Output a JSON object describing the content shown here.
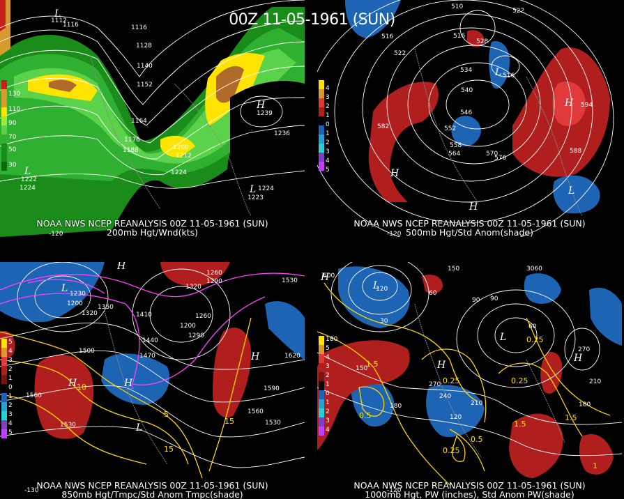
{
  "header": {
    "title": "00Z 11-05-1961 (SUN)"
  },
  "colors": {
    "background": "#000000",
    "wind_shades": [
      "#1a8c1a",
      "#30b030",
      "#5ad24a",
      "#a6e63c",
      "#ffe400",
      "#d89a2e",
      "#b06a2a",
      "#c81e1e"
    ],
    "anom_pos": "#b01e1e",
    "anom_pos_strong": "#e03a3a",
    "anom_neg": "#1e64b4",
    "anom_neg_strong": "#28a0d2",
    "temp_contour": "#ffd700",
    "cold_contour": "#ff40ff",
    "height_contour": "#ffffff"
  },
  "panels": [
    {
      "id": "p1",
      "caption1": "NOAA NWS NCEP REANALYSIS 00Z 11-05-1961 (SUN)",
      "caption2": "200mb Hgt/Wnd(kts)",
      "legend": [
        "130",
        "110",
        "90",
        "70",
        "50",
        "30"
      ],
      "height_labels": [
        "1116",
        "1116",
        "1128",
        "1140",
        "1152",
        "1164",
        "1176",
        "1188",
        "1200",
        "1212",
        "1224",
        "1236",
        "1224",
        "1224",
        "1239",
        "1222",
        "1223",
        "1112"
      ],
      "centers": [
        "L",
        "H",
        "L",
        "L"
      ],
      "lon_labels": [
        "-120"
      ]
    },
    {
      "id": "p2",
      "caption1": "NOAA NWS NCEP REANALYSIS 00Z 11-05-1961 (SUN)",
      "caption2": "500mb Hgt/Std Anom(shade)",
      "legend": [
        "4",
        "3",
        "2",
        "1",
        "0",
        "1",
        "2",
        "3",
        "4",
        "5"
      ],
      "height_labels": [
        "510",
        "516",
        "522",
        "528",
        "534",
        "540",
        "546",
        "552",
        "558",
        "564",
        "570",
        "576",
        "582",
        "588",
        "594",
        "522",
        "516",
        "516"
      ],
      "centers": [
        "H",
        "H",
        "L",
        "L",
        "H"
      ],
      "lon_labels": [
        "-120"
      ]
    },
    {
      "id": "p3",
      "caption1": "NOAA NWS NCEP REANALYSIS 00Z 11-05-1961 (SUN)",
      "caption2": "850mb Hgt/Tmpc/Std Anom Tmpc(shade)",
      "legend": [
        "5",
        "4",
        "3",
        "2",
        "1",
        "0",
        "1",
        "2",
        "3",
        "4",
        "5"
      ],
      "height_labels": [
        "1260",
        "1290",
        "1320",
        "1230",
        "1200",
        "1320",
        "1350",
        "1410",
        "1440",
        "1470",
        "1500",
        "1530",
        "1560",
        "1590",
        "1620",
        "1530",
        "1560",
        "1530",
        "1290",
        "1260",
        "1200"
      ],
      "temp_labels": [
        "10",
        "5",
        "15",
        "15",
        "-5"
      ],
      "centers": [
        "H",
        "L",
        "H",
        "H",
        "L",
        "L"
      ],
      "lon_labels": [
        "-130"
      ]
    },
    {
      "id": "p4",
      "caption1": "NOAA NWS NCEP REANALYSIS 00Z 11-05-1961 (SUN)",
      "caption2": "1000mb Hgt, PW (inches), Std Anom PW(shade)",
      "legend": [
        "180",
        "5",
        "4",
        "3",
        "2",
        "1",
        "0",
        "1",
        "2",
        "3",
        "4"
      ],
      "height_labels": [
        "600",
        "150",
        "120",
        "90",
        "60",
        "30",
        "180",
        "210",
        "240",
        "270",
        "210",
        "180",
        "150",
        "120",
        "60",
        "90",
        "3060",
        "270"
      ],
      "pw_labels": [
        "0.5",
        "0.25",
        "1.5",
        "0.25",
        "0.5",
        "0.25",
        "1.5",
        "0.25",
        "1.5",
        "1"
      ],
      "centers": [
        "H",
        "L",
        "H",
        "L",
        "H"
      ],
      "lon_labels": [
        "-120"
      ]
    }
  ]
}
